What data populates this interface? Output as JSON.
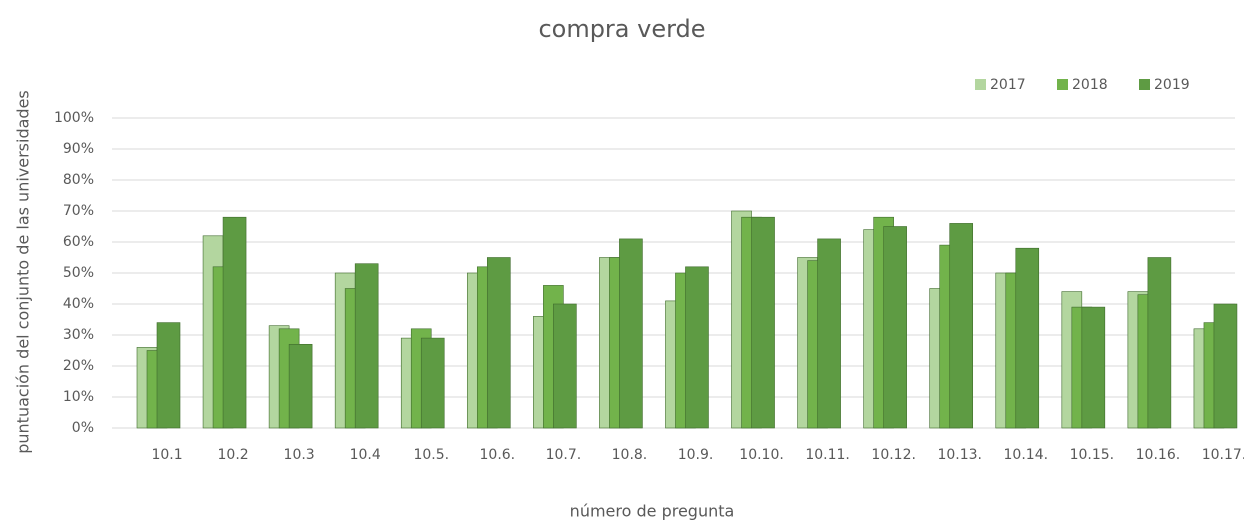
{
  "chart_data": {
    "type": "bar",
    "title": "compra verde",
    "xlabel": "número de pregunta",
    "ylabel": "puntuación del conjunto de las universidades",
    "categories": [
      "10.1",
      "10.2",
      "10.3",
      "10.4",
      "10.5.",
      "10.6.",
      "10.7.",
      "10.8.",
      "10.9.",
      "10.10.",
      "10.11.",
      "10.12.",
      "10.13.",
      "10.14.",
      "10.15.",
      "10.16.",
      "10.17."
    ],
    "series": [
      {
        "name": "2017",
        "color": "#b3d69f",
        "values": [
          26,
          62,
          33,
          50,
          29,
          50,
          36,
          55,
          41,
          70,
          55,
          64,
          45,
          50,
          44,
          44,
          32
        ]
      },
      {
        "name": "2018",
        "color": "#72b34b",
        "values": [
          25,
          52,
          32,
          45,
          32,
          52,
          46,
          55,
          50,
          68,
          54,
          68,
          59,
          50,
          39,
          43,
          34
        ]
      },
      {
        "name": "2019",
        "color": "#5e9b43",
        "values": [
          34,
          68,
          27,
          53,
          29,
          55,
          40,
          61,
          52,
          68,
          61,
          65,
          66,
          58,
          39,
          55,
          40
        ]
      }
    ],
    "ylim": [
      0,
      100
    ],
    "yticks": [
      {
        "value": 0,
        "label": "0%"
      },
      {
        "value": 10,
        "label": "10%"
      },
      {
        "value": 20,
        "label": "20%"
      },
      {
        "value": 30,
        "label": "30%"
      },
      {
        "value": 40,
        "label": "40%"
      },
      {
        "value": 50,
        "label": "50%"
      },
      {
        "value": 60,
        "label": "60%"
      },
      {
        "value": 70,
        "label": "70%"
      },
      {
        "value": 80,
        "label": "80%"
      },
      {
        "value": 90,
        "label": "90%"
      },
      {
        "value": 100,
        "label": "100%"
      }
    ],
    "grid": true,
    "legend": "top-right"
  }
}
